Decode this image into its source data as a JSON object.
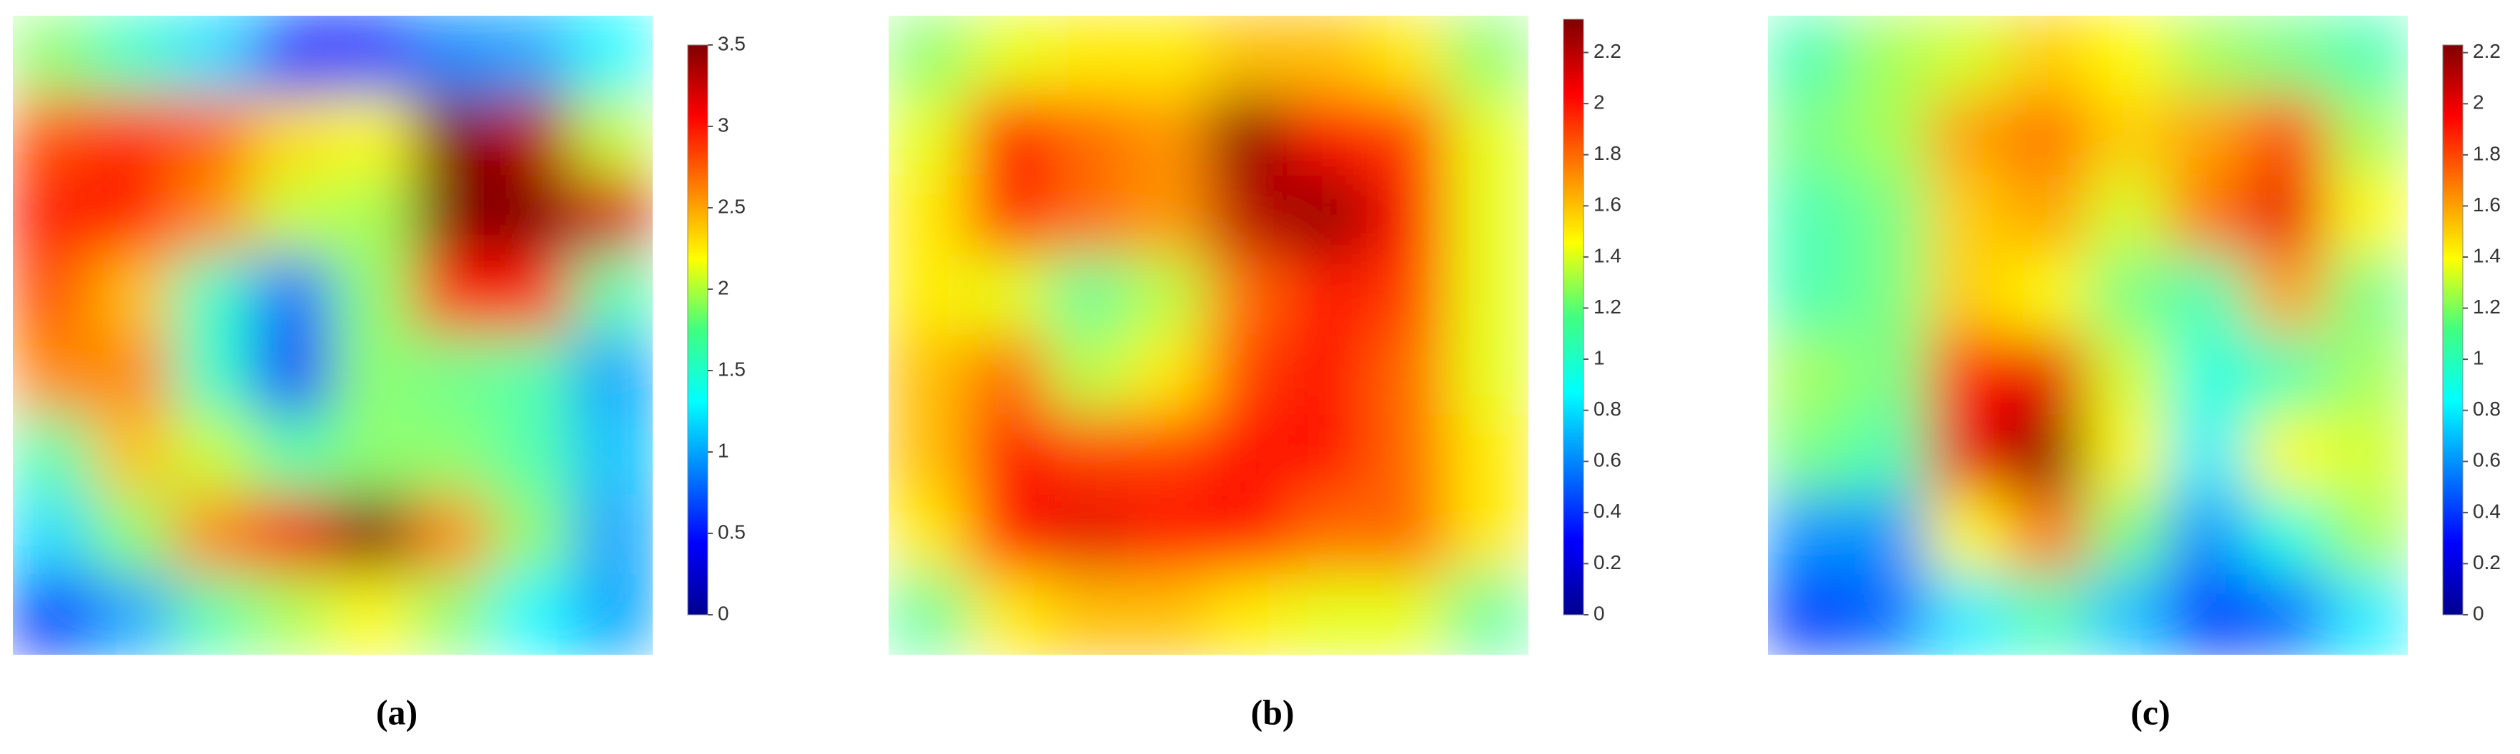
{
  "chart_data": [
    {
      "type": "heatmap",
      "label": "(a)",
      "clim": [
        0,
        3.5
      ],
      "cticks": [
        0,
        0.5,
        1,
        1.5,
        2,
        2.5,
        3,
        3.5
      ],
      "z": [
        [
          1.8,
          1.5,
          1.2,
          0.6,
          0.6,
          0.9,
          1.0,
          1.3
        ],
        [
          2.8,
          2.9,
          2.7,
          2.3,
          2.2,
          3.5,
          3.3,
          2.0
        ],
        [
          3.0,
          3.0,
          2.6,
          2.0,
          1.9,
          3.5,
          3.5,
          3.2
        ],
        [
          2.8,
          2.4,
          1.5,
          0.8,
          1.8,
          3.0,
          3.0,
          1.6
        ],
        [
          2.6,
          2.6,
          1.5,
          0.6,
          1.8,
          1.7,
          1.6,
          1.0
        ],
        [
          1.6,
          2.4,
          2.0,
          1.6,
          1.8,
          1.8,
          1.6,
          1.1
        ],
        [
          1.2,
          1.8,
          2.6,
          3.1,
          3.5,
          2.6,
          1.8,
          1.0
        ],
        [
          0.6,
          1.0,
          1.6,
          1.9,
          2.2,
          1.8,
          1.3,
          1.0
        ]
      ]
    },
    {
      "type": "heatmap",
      "label": "(b)",
      "clim": [
        0,
        2.33
      ],
      "cticks": [
        0,
        0.2,
        0.4,
        0.6,
        0.8,
        1,
        1.2,
        1.4,
        1.6,
        1.8,
        2,
        2.2
      ],
      "z": [
        [
          1.2,
          1.4,
          1.5,
          1.5,
          1.6,
          1.6,
          1.5,
          1.2
        ],
        [
          1.4,
          2.0,
          1.8,
          1.7,
          2.3,
          2.0,
          1.9,
          1.4
        ],
        [
          1.5,
          2.0,
          1.8,
          1.7,
          2.2,
          2.3,
          2.0,
          1.4
        ],
        [
          1.5,
          1.4,
          1.1,
          1.3,
          1.8,
          2.0,
          1.9,
          1.4
        ],
        [
          1.6,
          1.8,
          1.3,
          1.5,
          1.9,
          2.0,
          1.8,
          1.4
        ],
        [
          1.6,
          2.0,
          1.9,
          1.9,
          2.0,
          2.0,
          1.8,
          1.5
        ],
        [
          1.5,
          2.0,
          2.1,
          2.0,
          2.0,
          1.8,
          1.8,
          1.5
        ],
        [
          1.1,
          1.5,
          1.6,
          1.6,
          1.5,
          1.4,
          1.4,
          1.1
        ]
      ]
    },
    {
      "type": "heatmap",
      "label": "(c)",
      "clim": [
        0,
        2.23
      ],
      "cticks": [
        0,
        0.2,
        0.4,
        0.6,
        0.8,
        1,
        1.2,
        1.4,
        1.6,
        1.8,
        2,
        2.2
      ],
      "z": [
        [
          1.0,
          1.2,
          1.3,
          1.5,
          1.4,
          1.2,
          1.1,
          1.0
        ],
        [
          1.1,
          1.2,
          1.6,
          1.7,
          1.5,
          1.6,
          1.8,
          1.2
        ],
        [
          1.0,
          1.1,
          1.5,
          1.6,
          1.3,
          1.7,
          2.0,
          1.4
        ],
        [
          1.0,
          1.1,
          1.5,
          1.4,
          1.1,
          1.0,
          1.6,
          1.1
        ],
        [
          1.2,
          1.1,
          1.9,
          2.0,
          1.3,
          0.9,
          1.0,
          1.2
        ],
        [
          1.1,
          1.0,
          2.0,
          2.2,
          1.4,
          0.8,
          1.4,
          1.3
        ],
        [
          0.6,
          0.6,
          1.4,
          1.7,
          1.1,
          0.6,
          0.9,
          1.2
        ],
        [
          0.4,
          0.5,
          0.8,
          1.0,
          0.7,
          0.4,
          0.5,
          0.8
        ]
      ]
    }
  ]
}
